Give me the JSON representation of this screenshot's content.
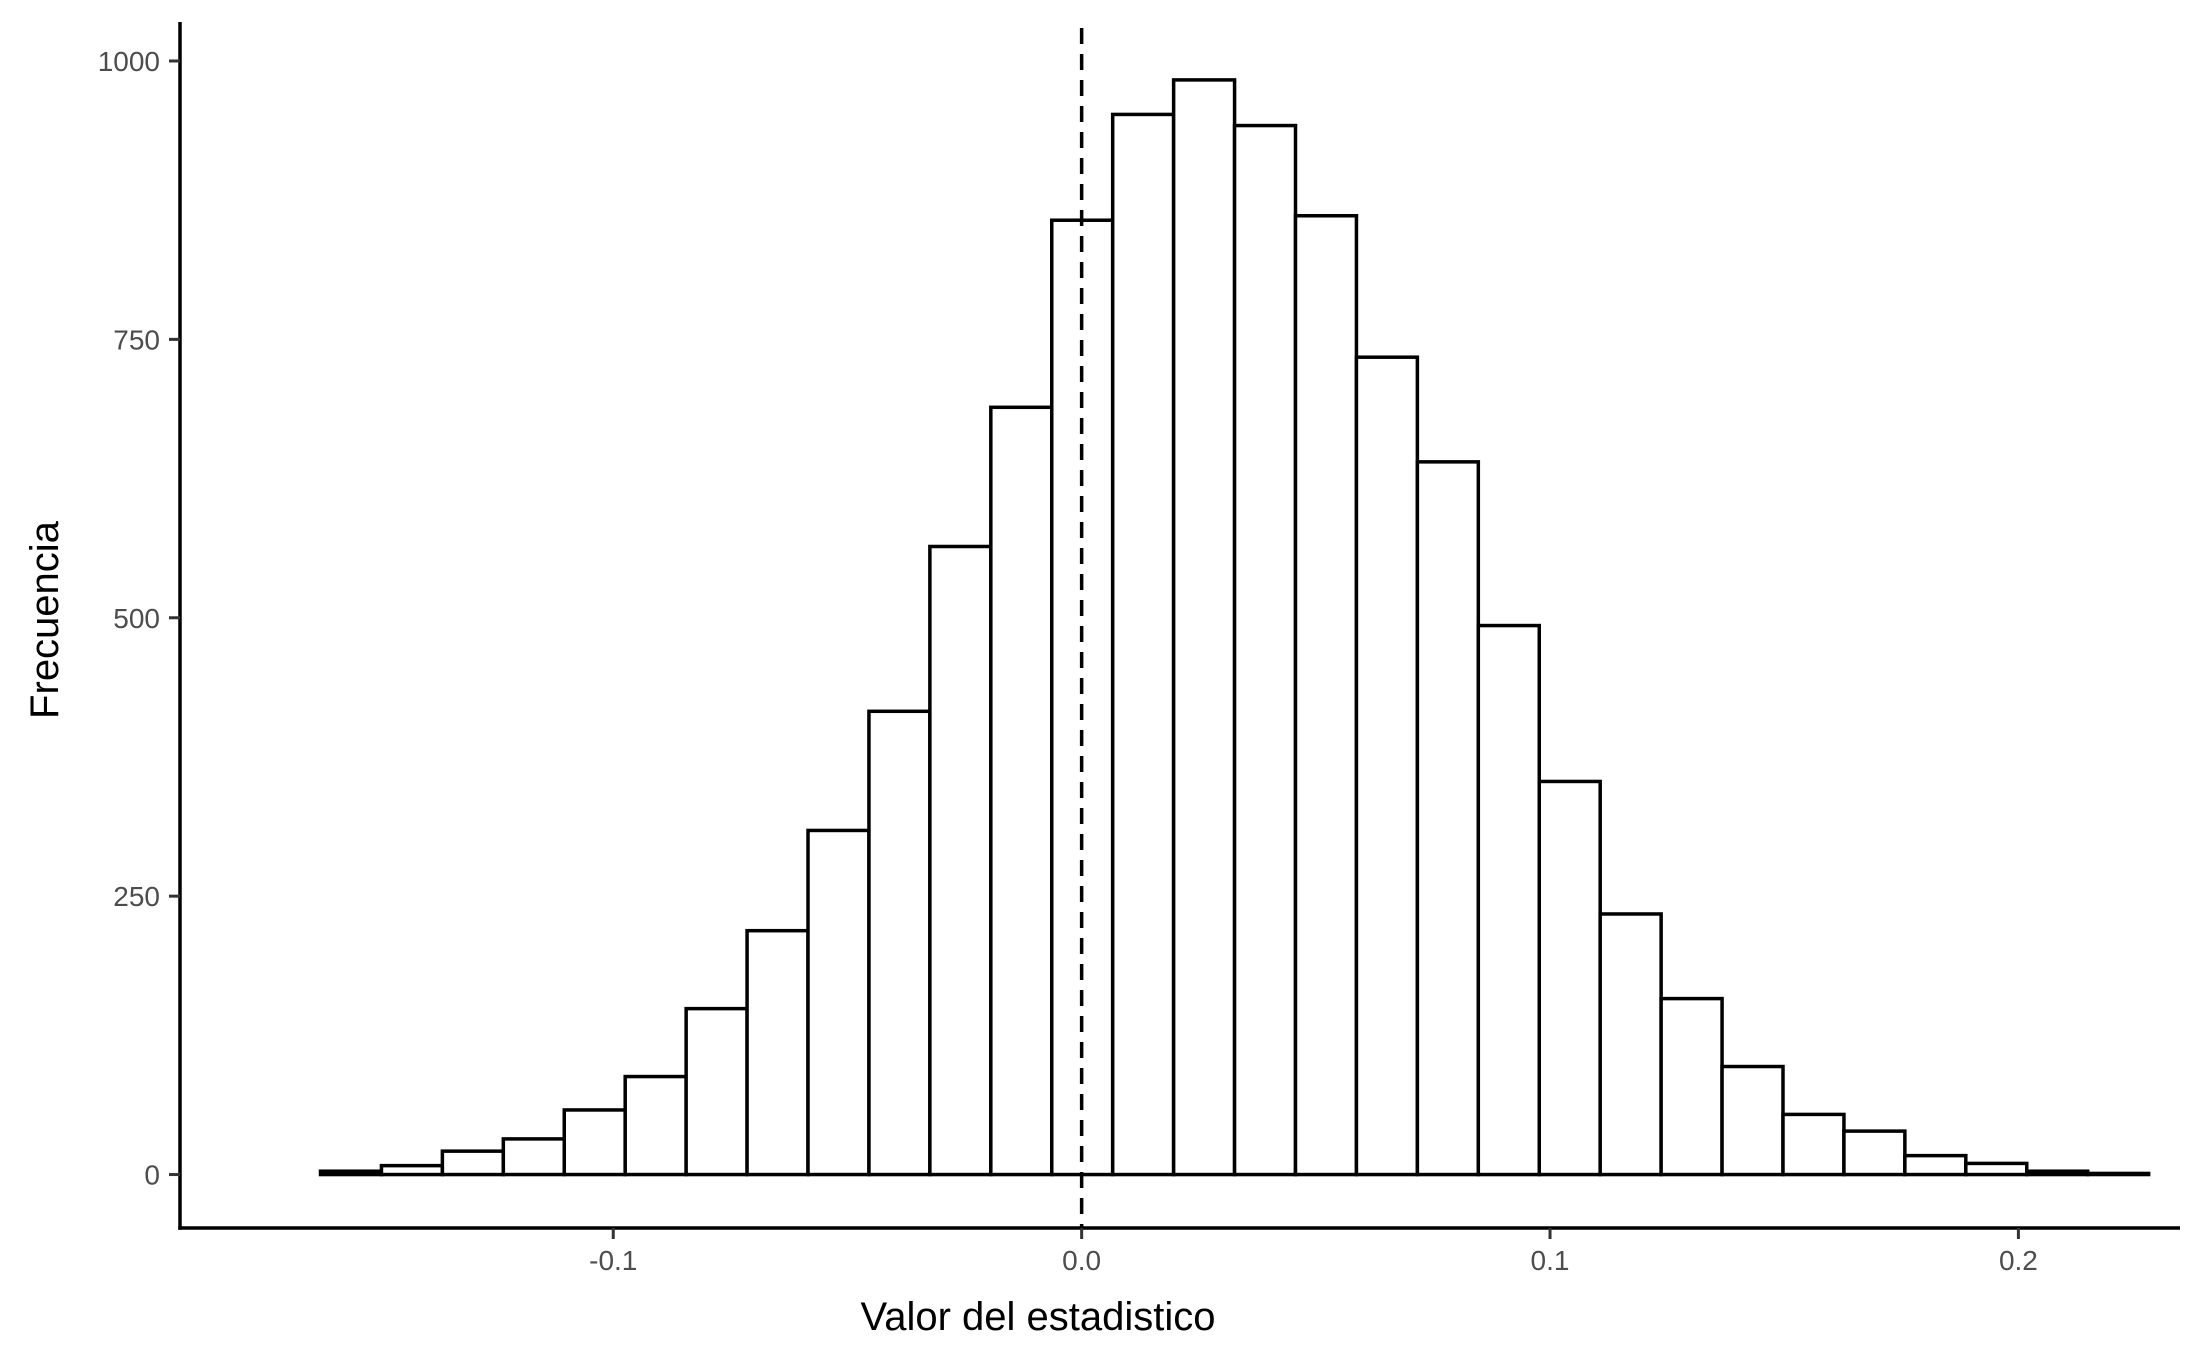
{
  "chart_data": {
    "type": "bar",
    "subtype": "histogram",
    "title": "",
    "xlabel": "Valor del estadistico",
    "ylabel": "Frecuencia",
    "xlim": [
      -0.1925,
      0.2345
    ],
    "ylim": [
      -48,
      1035
    ],
    "x_ticks": [
      -0.1,
      0.0,
      0.1,
      0.2
    ],
    "x_tick_labels": [
      "-0.1",
      "0.0",
      "0.1",
      "0.2"
    ],
    "y_ticks": [
      0,
      250,
      500,
      750,
      1000
    ],
    "y_tick_labels": [
      "0",
      "250",
      "500",
      "750",
      "1000"
    ],
    "bin_width": 0.01301,
    "first_bin_left": -0.1625,
    "values": [
      3,
      8,
      21,
      32,
      58,
      88,
      149,
      219,
      309,
      416,
      564,
      689,
      857,
      952,
      983,
      942,
      861,
      734,
      640,
      493,
      353,
      234,
      158,
      97,
      54,
      39,
      17,
      10,
      3,
      1
    ],
    "reference_line": {
      "x": 0.0,
      "style": "dashed"
    },
    "grid": false,
    "legend": "none",
    "bar_fill": "#ffffff",
    "bar_stroke": "#000000"
  }
}
